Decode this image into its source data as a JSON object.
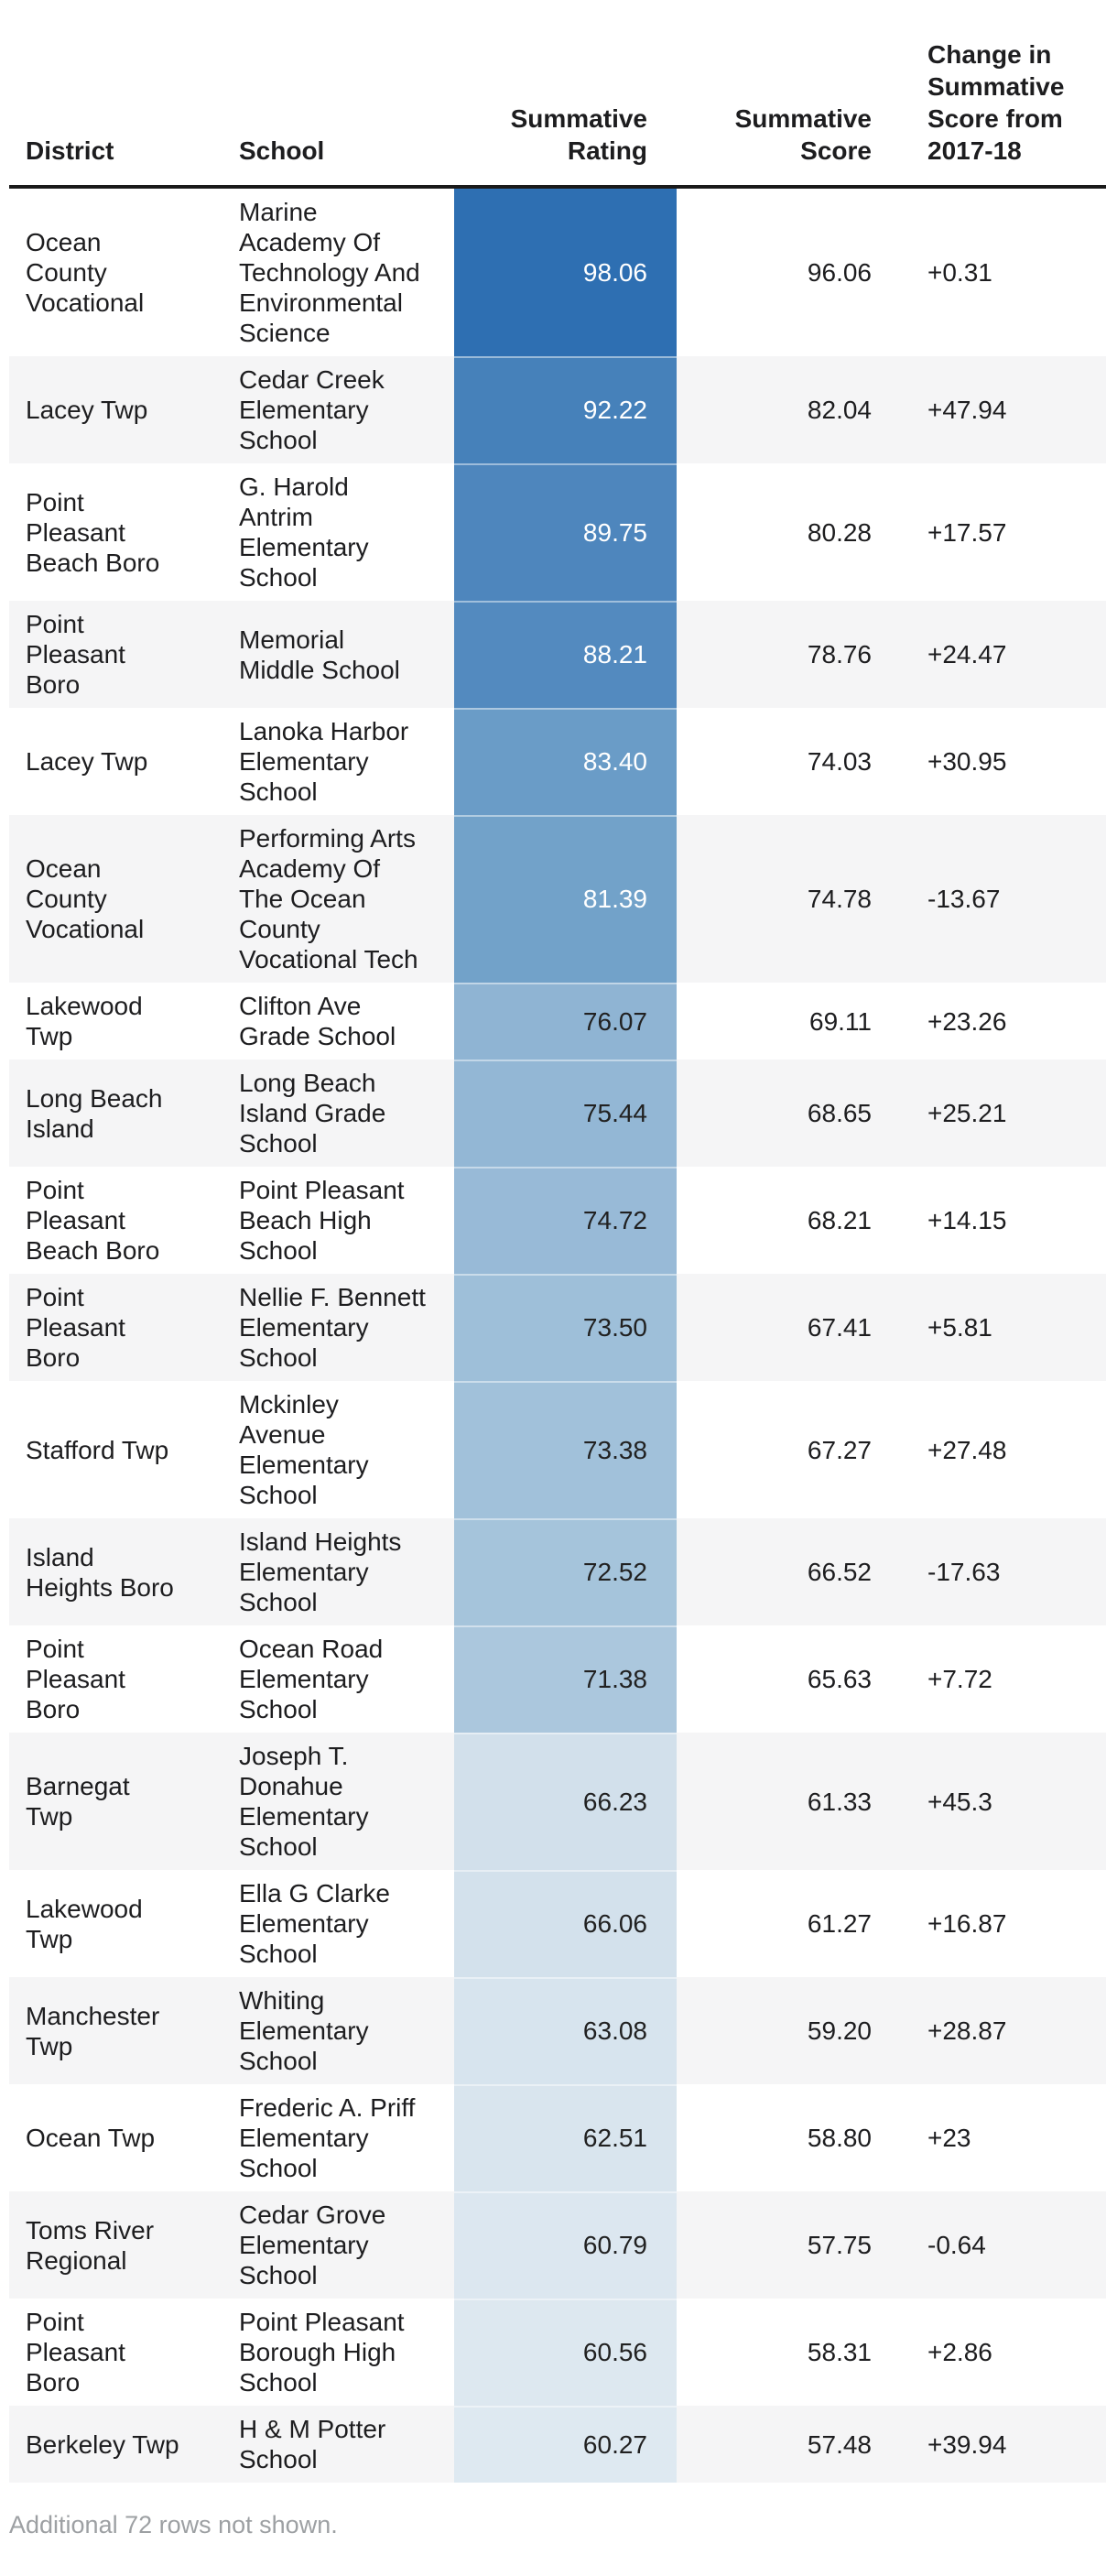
{
  "footnote": "Additional 72 rows not shown.",
  "colors": {
    "header_rule": "#1a1a1a",
    "stripe_row_bg": "#f5f5f6",
    "body_text": "#1d1d1f",
    "footnote_text": "#9da0a3",
    "rating_scale_max": "#2e6fb2",
    "rating_scale_min": "#dee9f1"
  },
  "table": {
    "header": {
      "district": "District",
      "school": "School",
      "rating": "Summative\nRating",
      "score": "Summative\nScore",
      "change": "Change in\nSummative\nScore from\n2017-18"
    },
    "rows": [
      {
        "district": "Ocean\nCounty\nVocational",
        "school": "Marine\nAcademy Of\nTechnology And\nEnvironmental\nScience",
        "rating": "98.06",
        "score": "96.06",
        "change": "+0.31",
        "rating_color": "#2e6fb2",
        "rating_text_color": "#ffffff"
      },
      {
        "district": "Lacey Twp",
        "school": "Cedar Creek\nElementary\nSchool",
        "rating": "92.22",
        "score": "82.04",
        "change": "+47.94",
        "rating_color": "#4681ba",
        "rating_text_color": "#ffffff"
      },
      {
        "district": "Point\nPleasant\nBeach Boro",
        "school": "G. Harold\nAntrim\nElementary\nSchool",
        "rating": "89.75",
        "score": "80.28",
        "change": "+17.57",
        "rating_color": "#4e86bd",
        "rating_text_color": "#ffffff"
      },
      {
        "district": "Point\nPleasant\nBoro",
        "school": "Memorial\nMiddle School",
        "rating": "88.21",
        "score": "78.76",
        "change": "+24.47",
        "rating_color": "#538abf",
        "rating_text_color": "#ffffff"
      },
      {
        "district": "Lacey Twp",
        "school": "Lanoka Harbor\nElementary\nSchool",
        "rating": "83.40",
        "score": "74.03",
        "change": "+30.95",
        "rating_color": "#6a9cc7",
        "rating_text_color": "#ffffff"
      },
      {
        "district": "Ocean\nCounty\nVocational",
        "school": "Performing Arts\nAcademy Of\nThe Ocean\nCounty\nVocational Tech",
        "rating": "81.39",
        "score": "74.78",
        "change": "-13.67",
        "rating_color": "#72a2c9",
        "rating_text_color": "#ffffff"
      },
      {
        "district": "Lakewood\nTwp",
        "school": "Clifton Ave\nGrade School",
        "rating": "76.07",
        "score": "69.11",
        "change": "+23.26",
        "rating_color": "#8fb4d3",
        "rating_text_color": "#212121"
      },
      {
        "district": "Long Beach\nIsland",
        "school": "Long Beach\nIsland Grade\nSchool",
        "rating": "75.44",
        "score": "68.65",
        "change": "+25.21",
        "rating_color": "#93b7d5",
        "rating_text_color": "#212121"
      },
      {
        "district": "Point\nPleasant\nBeach Boro",
        "school": "Point Pleasant\nBeach High\nSchool",
        "rating": "74.72",
        "score": "68.21",
        "change": "+14.15",
        "rating_color": "#98bad7",
        "rating_text_color": "#212121"
      },
      {
        "district": "Point\nPleasant\nBoro",
        "school": "Nellie F. Bennett\nElementary\nSchool",
        "rating": "73.50",
        "score": "67.41",
        "change": "+5.81",
        "rating_color": "#9ebfd9",
        "rating_text_color": "#212121"
      },
      {
        "district": "Stafford Twp",
        "school": "Mckinley\nAvenue\nElementary\nSchool",
        "rating": "73.38",
        "score": "67.27",
        "change": "+27.48",
        "rating_color": "#a1c1da",
        "rating_text_color": "#212121"
      },
      {
        "district": "Island\nHeights Boro",
        "school": "Island Heights\nElementary\nSchool",
        "rating": "72.52",
        "score": "66.52",
        "change": "-17.63",
        "rating_color": "#a5c4db",
        "rating_text_color": "#212121"
      },
      {
        "district": "Point\nPleasant\nBoro",
        "school": "Ocean Road\nElementary\nSchool",
        "rating": "71.38",
        "score": "65.63",
        "change": "+7.72",
        "rating_color": "#abc7dd",
        "rating_text_color": "#212121"
      },
      {
        "district": "Barnegat\nTwp",
        "school": "Joseph T.\nDonahue\nElementary\nSchool",
        "rating": "66.23",
        "score": "61.33",
        "change": "+45.3",
        "rating_color": "#d2e0eb",
        "rating_text_color": "#212121"
      },
      {
        "district": "Lakewood\nTwp",
        "school": "Ella G Clarke\nElementary\nSchool",
        "rating": "66.06",
        "score": "61.27",
        "change": "+16.87",
        "rating_color": "#d3e1ec",
        "rating_text_color": "#212121"
      },
      {
        "district": "Manchester\nTwp",
        "school": "Whiting\nElementary\nSchool",
        "rating": "63.08",
        "score": "59.20",
        "change": "+28.87",
        "rating_color": "#d7e4ee",
        "rating_text_color": "#212121"
      },
      {
        "district": "Ocean Twp",
        "school": "Frederic A. Priff\nElementary\nSchool",
        "rating": "62.51",
        "score": "58.80",
        "change": "+23",
        "rating_color": "#d9e5ee",
        "rating_text_color": "#212121"
      },
      {
        "district": "Toms River\nRegional",
        "school": "Cedar Grove\nElementary\nSchool",
        "rating": "60.79",
        "score": "57.75",
        "change": "-0.64",
        "rating_color": "#dce7f0",
        "rating_text_color": "#212121"
      },
      {
        "district": "Point\nPleasant\nBoro",
        "school": "Point Pleasant\nBorough High\nSchool",
        "rating": "60.56",
        "score": "58.31",
        "change": "+2.86",
        "rating_color": "#dde8f0",
        "rating_text_color": "#212121"
      },
      {
        "district": "Berkeley Twp",
        "school": "H & M Potter\nSchool",
        "rating": "60.27",
        "score": "57.48",
        "change": "+39.94",
        "rating_color": "#dee9f1",
        "rating_text_color": "#212121"
      }
    ]
  },
  "chart_data": {
    "type": "table",
    "title": "",
    "columns": [
      "District",
      "School",
      "Summative Rating",
      "Summative Score",
      "Change in Summative Score from 2017-18"
    ],
    "rows": [
      {
        "district": "Ocean County Vocational",
        "school": "Marine Academy Of Technology And Environmental Science",
        "summative_rating": 98.06,
        "summative_score": 96.06,
        "change_from_2017_18": "+0.31"
      },
      {
        "district": "Lacey Twp",
        "school": "Cedar Creek Elementary School",
        "summative_rating": 92.22,
        "summative_score": 82.04,
        "change_from_2017_18": "+47.94"
      },
      {
        "district": "Point Pleasant Beach Boro",
        "school": "G. Harold Antrim Elementary School",
        "summative_rating": 89.75,
        "summative_score": 80.28,
        "change_from_2017_18": "+17.57"
      },
      {
        "district": "Point Pleasant Boro",
        "school": "Memorial Middle School",
        "summative_rating": 88.21,
        "summative_score": 78.76,
        "change_from_2017_18": "+24.47"
      },
      {
        "district": "Lacey Twp",
        "school": "Lanoka Harbor Elementary School",
        "summative_rating": 83.4,
        "summative_score": 74.03,
        "change_from_2017_18": "+30.95"
      },
      {
        "district": "Ocean County Vocational",
        "school": "Performing Arts Academy Of The Ocean County Vocational Tech",
        "summative_rating": 81.39,
        "summative_score": 74.78,
        "change_from_2017_18": "-13.67"
      },
      {
        "district": "Lakewood Twp",
        "school": "Clifton Ave Grade School",
        "summative_rating": 76.07,
        "summative_score": 69.11,
        "change_from_2017_18": "+23.26"
      },
      {
        "district": "Long Beach Island",
        "school": "Long Beach Island Grade School",
        "summative_rating": 75.44,
        "summative_score": 68.65,
        "change_from_2017_18": "+25.21"
      },
      {
        "district": "Point Pleasant Beach Boro",
        "school": "Point Pleasant Beach High School",
        "summative_rating": 74.72,
        "summative_score": 68.21,
        "change_from_2017_18": "+14.15"
      },
      {
        "district": "Point Pleasant Boro",
        "school": "Nellie F. Bennett Elementary School",
        "summative_rating": 73.5,
        "summative_score": 67.41,
        "change_from_2017_18": "+5.81"
      },
      {
        "district": "Stafford Twp",
        "school": "Mckinley Avenue Elementary School",
        "summative_rating": 73.38,
        "summative_score": 67.27,
        "change_from_2017_18": "+27.48"
      },
      {
        "district": "Island Heights Boro",
        "school": "Island Heights Elementary School",
        "summative_rating": 72.52,
        "summative_score": 66.52,
        "change_from_2017_18": "-17.63"
      },
      {
        "district": "Point Pleasant Boro",
        "school": "Ocean Road Elementary School",
        "summative_rating": 71.38,
        "summative_score": 65.63,
        "change_from_2017_18": "+7.72"
      },
      {
        "district": "Barnegat Twp",
        "school": "Joseph T. Donahue Elementary School",
        "summative_rating": 66.23,
        "summative_score": 61.33,
        "change_from_2017_18": "+45.3"
      },
      {
        "district": "Lakewood Twp",
        "school": "Ella G Clarke Elementary School",
        "summative_rating": 66.06,
        "summative_score": 61.27,
        "change_from_2017_18": "+16.87"
      },
      {
        "district": "Manchester Twp",
        "school": "Whiting Elementary School",
        "summative_rating": 63.08,
        "summative_score": 59.2,
        "change_from_2017_18": "+28.87"
      },
      {
        "district": "Ocean Twp",
        "school": "Frederic A. Priff Elementary School",
        "summative_rating": 62.51,
        "summative_score": 58.8,
        "change_from_2017_18": "+23"
      },
      {
        "district": "Toms River Regional",
        "school": "Cedar Grove Elementary School",
        "summative_rating": 60.79,
        "summative_score": 57.75,
        "change_from_2017_18": "-0.64"
      },
      {
        "district": "Point Pleasant Boro",
        "school": "Point Pleasant Borough High School",
        "summative_rating": 60.56,
        "summative_score": 58.31,
        "change_from_2017_18": "+2.86"
      },
      {
        "district": "Berkeley Twp",
        "school": "H & M Potter School",
        "summative_rating": 60.27,
        "summative_score": 57.48,
        "change_from_2017_18": "+39.94"
      }
    ],
    "notes": "Summative Rating column cells are shaded on a sequential blue scale (dark blue = high rating ~98, pale blue = low rating ~60). Footer: Additional 72 rows not shown.",
    "legend_position": "none",
    "grid": "row-striping"
  }
}
